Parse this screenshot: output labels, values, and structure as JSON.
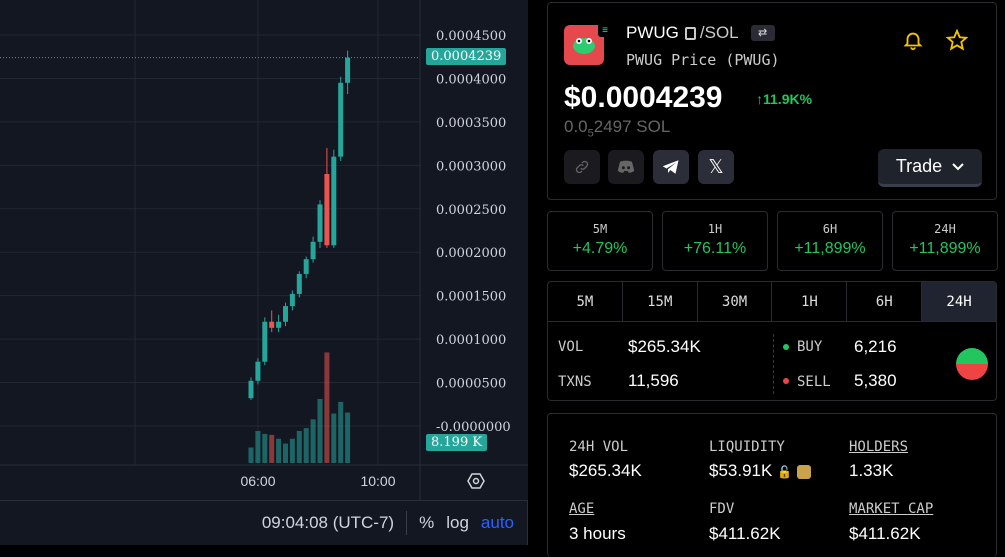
{
  "chart": {
    "y_ticks": [
      "0.0004500",
      "0.0004000",
      "0.0003500",
      "0.0003000",
      "0.0002500",
      "0.0002000",
      "0.0001500",
      "0.0001000",
      "0.0000500",
      "-0.0000000"
    ],
    "x_ticks": [
      "06:00",
      "10:00"
    ],
    "price_tag": "0.0004239",
    "volume_tag": "8.199 K",
    "footer": {
      "time": "09:04:08 (UTC-7)",
      "percent": "%",
      "log": "log",
      "auto": "auto"
    },
    "colors": {
      "up": "#26a69a",
      "down": "#ef5350",
      "bg": "#131722"
    }
  },
  "chart_data": {
    "type": "candlestick",
    "y_unit": "SOL price (USD)",
    "ylim": [
      0,
      0.00045
    ],
    "candles": [
      {
        "o": 3.2e-05,
        "h": 5.6e-05,
        "l": 3e-05,
        "c": 5.2e-05
      },
      {
        "o": 5.2e-05,
        "h": 7.8e-05,
        "l": 4.8e-05,
        "c": 7.4e-05
      },
      {
        "o": 7.4e-05,
        "h": 0.000125,
        "l": 7e-05,
        "c": 0.00012
      },
      {
        "o": 0.00012,
        "h": 0.000133,
        "l": 0.000108,
        "c": 0.000113
      },
      {
        "o": 0.000113,
        "h": 0.000128,
        "l": 0.000108,
        "c": 0.00012
      },
      {
        "o": 0.00012,
        "h": 0.000142,
        "l": 0.000115,
        "c": 0.000138
      },
      {
        "o": 0.000138,
        "h": 0.000156,
        "l": 0.000133,
        "c": 0.000152
      },
      {
        "o": 0.000152,
        "h": 0.000178,
        "l": 0.000148,
        "c": 0.000175
      },
      {
        "o": 0.000175,
        "h": 0.000195,
        "l": 0.00017,
        "c": 0.000192
      },
      {
        "o": 0.000192,
        "h": 0.000218,
        "l": 0.000188,
        "c": 0.000212
      },
      {
        "o": 0.000212,
        "h": 0.00026,
        "l": 0.000205,
        "c": 0.000255
      },
      {
        "o": 0.00029,
        "h": 0.00032,
        "l": 0.000205,
        "c": 0.000208
      },
      {
        "o": 0.000208,
        "h": 0.000318,
        "l": 0.000205,
        "c": 0.00031
      },
      {
        "o": 0.00031,
        "h": 0.000402,
        "l": 0.000305,
        "c": 0.000395
      },
      {
        "o": 0.000395,
        "h": 0.000432,
        "l": 0.000382,
        "c": 0.0004239
      }
    ],
    "volume": [
      {
        "v": 1.6,
        "up": true
      },
      {
        "v": 3.3,
        "up": true
      },
      {
        "v": 3.0,
        "up": true
      },
      {
        "v": 2.9,
        "up": false
      },
      {
        "v": 2.5,
        "up": true
      },
      {
        "v": 2.0,
        "up": true
      },
      {
        "v": 2.5,
        "up": true
      },
      {
        "v": 3.3,
        "up": true
      },
      {
        "v": 3.6,
        "up": true
      },
      {
        "v": 4.5,
        "up": true
      },
      {
        "v": 6.6,
        "up": true
      },
      {
        "v": 11.4,
        "up": false
      },
      {
        "v": 5.1,
        "up": true
      },
      {
        "v": 6.3,
        "up": true
      },
      {
        "v": 5.2,
        "up": true
      }
    ]
  },
  "token": {
    "symbol": "PWUG",
    "quote": "/SOL",
    "subtitle": "PWUG Price (PWUG)",
    "price_usd": "$0.0004239",
    "change": "11.9K%",
    "price_sol_prefix": "0.0",
    "price_sol_sub": "5",
    "price_sol_rest": "2497 SOL",
    "trade_label": "Trade"
  },
  "price_changes": [
    {
      "label": "5M",
      "value": "+4.79%"
    },
    {
      "label": "1H",
      "value": "+76.11%"
    },
    {
      "label": "6H",
      "value": "+11,899%"
    },
    {
      "label": "24H",
      "value": "+11,899%"
    }
  ],
  "tabs": [
    "5M",
    "15M",
    "30M",
    "1H",
    "6H",
    "24H"
  ],
  "stats": {
    "vol_label": "VOL",
    "vol_value": "$265.34K",
    "txns_label": "TXNS",
    "txns_value": "11,596",
    "buy_label": "BUY",
    "buy_value": "6,216",
    "sell_label": "SELL",
    "sell_value": "5,380"
  },
  "info": {
    "vol24_label": "24H VOL",
    "vol24_value": "$265.34K",
    "liquidity_label": "LIQUIDITY",
    "liquidity_value": "$53.91K",
    "holders_label": "HOLDERS",
    "holders_value": "1.33K",
    "age_label": "AGE",
    "age_value": "3 hours",
    "fdv_label": "FDV",
    "fdv_value": "$411.62K",
    "mcap_label": "MARKET CAP",
    "mcap_value": "$411.62K"
  }
}
